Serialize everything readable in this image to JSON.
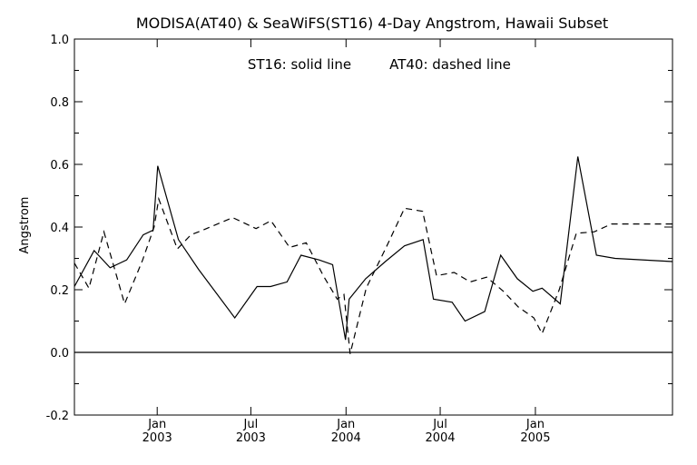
{
  "chart_data": {
    "type": "line",
    "title": "MODISA(AT40) & SeaWiFS(ST16) 4-Day Angstrom, Hawaii Subset",
    "annotation_solid": "ST16: solid line",
    "annotation_dashed": "AT40: dashed line",
    "ylabel": "Angstrom",
    "xlabel": "",
    "ylim": [
      -0.2,
      1.0
    ],
    "xlim": [
      "2002-07-25",
      "2005-09-23"
    ],
    "yticks": [
      "1.0",
      "0.8",
      "0.6",
      "0.4",
      "0.2",
      "0.0",
      "-0.2"
    ],
    "ytick_values": [
      1.0,
      0.8,
      0.6,
      0.4,
      0.2,
      0.0,
      -0.2
    ],
    "xticks": [
      {
        "date": "2003-01-01",
        "month": "Jan",
        "year": "2003"
      },
      {
        "date": "2003-07-01",
        "month": "Jul",
        "year": "2003"
      },
      {
        "date": "2004-01-01",
        "month": "Jan",
        "year": "2004"
      },
      {
        "date": "2004-07-01",
        "month": "Jul",
        "year": "2004"
      },
      {
        "date": "2005-01-01",
        "month": "Jan",
        "year": "2005"
      }
    ],
    "reference_line_y": 0.0,
    "grid": false,
    "series": [
      {
        "name": "ST16",
        "style": "solid",
        "color": "#000000",
        "points": [
          [
            "2002-07-25",
            0.21
          ],
          [
            "2002-09-01",
            0.325
          ],
          [
            "2002-10-02",
            0.27
          ],
          [
            "2002-11-03",
            0.295
          ],
          [
            "2002-12-05",
            0.375
          ],
          [
            "2002-12-24",
            0.39
          ],
          [
            "2003-01-02",
            0.595
          ],
          [
            "2003-02-11",
            0.36
          ],
          [
            "2003-03-22",
            0.265
          ],
          [
            "2003-05-31",
            0.11
          ],
          [
            "2003-07-13",
            0.21
          ],
          [
            "2003-08-08",
            0.21
          ],
          [
            "2003-09-09",
            0.225
          ],
          [
            "2003-10-06",
            0.31
          ],
          [
            "2003-11-10",
            0.295
          ],
          [
            "2003-12-06",
            0.28
          ],
          [
            "2003-12-31",
            0.04
          ],
          [
            "2004-01-07",
            0.17
          ],
          [
            "2004-02-08",
            0.235
          ],
          [
            "2004-03-17",
            0.29
          ],
          [
            "2004-04-23",
            0.34
          ],
          [
            "2004-05-29",
            0.36
          ],
          [
            "2004-06-18",
            0.17
          ],
          [
            "2004-07-24",
            0.16
          ],
          [
            "2004-08-18",
            0.1
          ],
          [
            "2004-09-25",
            0.13
          ],
          [
            "2004-10-26",
            0.31
          ],
          [
            "2004-11-27",
            0.235
          ],
          [
            "2004-12-27",
            0.195
          ],
          [
            "2005-01-14",
            0.205
          ],
          [
            "2005-02-18",
            0.155
          ],
          [
            "2005-03-24",
            0.625
          ],
          [
            "2005-04-29",
            0.31
          ],
          [
            "2005-06-04",
            0.3
          ],
          [
            "2005-09-23",
            0.29
          ]
        ]
      },
      {
        "name": "AT40",
        "style": "dashed",
        "color": "#000000",
        "points": [
          [
            "2002-07-25",
            0.285
          ],
          [
            "2002-08-22",
            0.205
          ],
          [
            "2002-09-20",
            0.385
          ],
          [
            "2002-10-30",
            0.155
          ],
          [
            "2002-12-04",
            0.295
          ],
          [
            "2002-12-26",
            0.4
          ],
          [
            "2003-01-04",
            0.49
          ],
          [
            "2003-02-09",
            0.33
          ],
          [
            "2003-03-07",
            0.375
          ],
          [
            "2003-03-30",
            0.39
          ],
          [
            "2003-05-27",
            0.43
          ],
          [
            "2003-07-11",
            0.395
          ],
          [
            "2003-08-09",
            0.42
          ],
          [
            "2003-09-14",
            0.335
          ],
          [
            "2003-10-16",
            0.35
          ],
          [
            "2003-11-18",
            0.245
          ],
          [
            "2003-12-15",
            0.17
          ],
          [
            "2003-12-28",
            0.185
          ],
          [
            "2004-01-09",
            -0.005
          ],
          [
            "2004-02-09",
            0.205
          ],
          [
            "2004-03-20",
            0.34
          ],
          [
            "2004-04-23",
            0.46
          ],
          [
            "2004-05-28",
            0.45
          ],
          [
            "2004-06-24",
            0.245
          ],
          [
            "2004-07-28",
            0.255
          ],
          [
            "2004-08-28",
            0.225
          ],
          [
            "2004-09-29",
            0.24
          ],
          [
            "2004-10-31",
            0.195
          ],
          [
            "2004-11-29",
            0.145
          ],
          [
            "2004-12-29",
            0.11
          ],
          [
            "2005-01-14",
            0.06
          ],
          [
            "2005-02-16",
            0.2
          ],
          [
            "2005-03-21",
            0.38
          ],
          [
            "2005-04-25",
            0.385
          ],
          [
            "2005-05-28",
            0.41
          ],
          [
            "2005-09-23",
            0.41
          ]
        ]
      }
    ]
  }
}
